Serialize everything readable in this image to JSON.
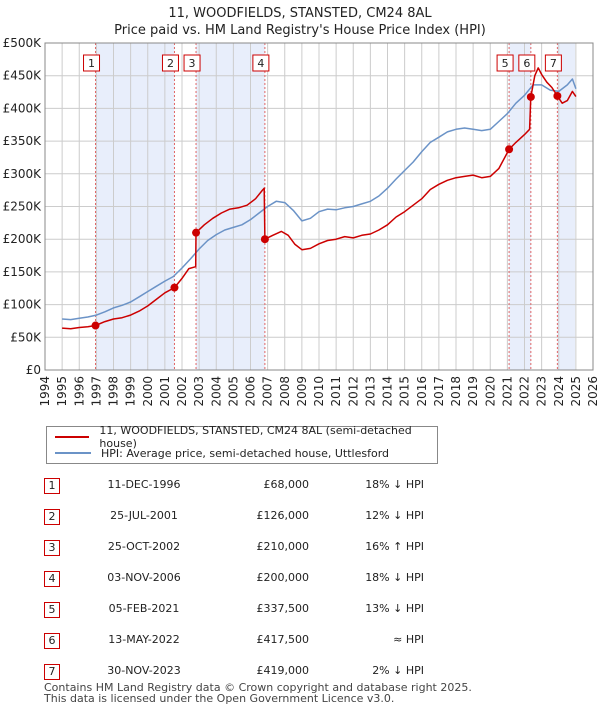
{
  "chart_data": {
    "type": "line",
    "title": "11, WOODFIELDS, STANSTED, CM24 8AL",
    "subtitle": "Price paid vs. HM Land Registry's House Price Index (HPI)",
    "xlabel": "",
    "ylabel": "",
    "xlim": [
      1994,
      2026
    ],
    "ylim": [
      0,
      500000
    ],
    "x_ticks": [
      "1994",
      "1995",
      "1996",
      "1997",
      "1998",
      "1999",
      "2000",
      "2001",
      "2002",
      "2003",
      "2004",
      "2005",
      "2006",
      "2007",
      "2008",
      "2009",
      "2010",
      "2011",
      "2012",
      "2013",
      "2014",
      "2015",
      "2016",
      "2017",
      "2018",
      "2019",
      "2020",
      "2021",
      "2022",
      "2023",
      "2024",
      "2025",
      "2026"
    ],
    "y_ticks": [
      {
        "value": 0,
        "label": "£0"
      },
      {
        "value": 50000,
        "label": "£50K"
      },
      {
        "value": 100000,
        "label": "£100K"
      },
      {
        "value": 150000,
        "label": "£150K"
      },
      {
        "value": 200000,
        "label": "£200K"
      },
      {
        "value": 250000,
        "label": "£250K"
      },
      {
        "value": 300000,
        "label": "£300K"
      },
      {
        "value": 350000,
        "label": "£350K"
      },
      {
        "value": 400000,
        "label": "£400K"
      },
      {
        "value": 450000,
        "label": "£450K"
      },
      {
        "value": 500000,
        "label": "£500K"
      }
    ],
    "grid": true,
    "legend_position": "below",
    "shaded_periods": [
      [
        1996.95,
        2001.56
      ],
      [
        2002.82,
        2006.84
      ],
      [
        2021.1,
        2022.37
      ],
      [
        2023.92,
        2024.95
      ]
    ],
    "series": [
      {
        "name": "11, WOODFIELDS, STANSTED, CM24 8AL (semi-detached house)",
        "color": "#cc0000",
        "points": [
          [
            1995.0,
            64000
          ],
          [
            1995.5,
            63000
          ],
          [
            1996.0,
            65000
          ],
          [
            1996.5,
            66000
          ],
          [
            1996.95,
            68000
          ],
          [
            1997.5,
            74000
          ],
          [
            1998.0,
            78000
          ],
          [
            1998.5,
            80000
          ],
          [
            1999.0,
            84000
          ],
          [
            1999.5,
            90000
          ],
          [
            2000.0,
            98000
          ],
          [
            2000.5,
            108000
          ],
          [
            2001.0,
            118000
          ],
          [
            2001.56,
            126000
          ],
          [
            2002.0,
            140000
          ],
          [
            2002.4,
            155000
          ],
          [
            2002.8,
            158000
          ],
          [
            2002.82,
            210000
          ],
          [
            2003.3,
            222000
          ],
          [
            2003.8,
            232000
          ],
          [
            2004.3,
            240000
          ],
          [
            2004.8,
            246000
          ],
          [
            2005.3,
            248000
          ],
          [
            2005.8,
            252000
          ],
          [
            2006.3,
            262000
          ],
          [
            2006.7,
            275000
          ],
          [
            2006.8,
            278000
          ],
          [
            2006.84,
            200000
          ],
          [
            2007.3,
            206000
          ],
          [
            2007.8,
            212000
          ],
          [
            2008.2,
            206000
          ],
          [
            2008.6,
            192000
          ],
          [
            2009.0,
            184000
          ],
          [
            2009.5,
            186000
          ],
          [
            2010.0,
            193000
          ],
          [
            2010.5,
            198000
          ],
          [
            2011.0,
            200000
          ],
          [
            2011.5,
            204000
          ],
          [
            2012.0,
            202000
          ],
          [
            2012.5,
            206000
          ],
          [
            2013.0,
            208000
          ],
          [
            2013.5,
            214000
          ],
          [
            2014.0,
            222000
          ],
          [
            2014.5,
            234000
          ],
          [
            2015.0,
            242000
          ],
          [
            2015.5,
            252000
          ],
          [
            2016.0,
            262000
          ],
          [
            2016.5,
            276000
          ],
          [
            2017.0,
            284000
          ],
          [
            2017.5,
            290000
          ],
          [
            2018.0,
            294000
          ],
          [
            2018.5,
            296000
          ],
          [
            2019.0,
            298000
          ],
          [
            2019.5,
            294000
          ],
          [
            2020.0,
            296000
          ],
          [
            2020.5,
            308000
          ],
          [
            2021.1,
            337500
          ],
          [
            2021.5,
            348000
          ],
          [
            2022.0,
            360000
          ],
          [
            2022.3,
            368000
          ],
          [
            2022.37,
            417500
          ],
          [
            2022.6,
            450000
          ],
          [
            2022.8,
            462000
          ],
          [
            2023.0,
            452000
          ],
          [
            2023.3,
            440000
          ],
          [
            2023.6,
            432000
          ],
          [
            2023.92,
            419000
          ],
          [
            2024.2,
            408000
          ],
          [
            2024.5,
            412000
          ],
          [
            2024.8,
            426000
          ],
          [
            2025.0,
            418000
          ]
        ]
      },
      {
        "name": "HPI: Average price, semi-detached house, Uttlesford",
        "color": "#6b93c7",
        "points": [
          [
            1995.0,
            78000
          ],
          [
            1995.5,
            77000
          ],
          [
            1996.0,
            79000
          ],
          [
            1996.5,
            81000
          ],
          [
            1997.0,
            84000
          ],
          [
            1997.5,
            89000
          ],
          [
            1998.0,
            95000
          ],
          [
            1998.5,
            99000
          ],
          [
            1999.0,
            104000
          ],
          [
            1999.5,
            112000
          ],
          [
            2000.0,
            120000
          ],
          [
            2000.5,
            128000
          ],
          [
            2001.0,
            136000
          ],
          [
            2001.5,
            143000
          ],
          [
            2002.0,
            156000
          ],
          [
            2002.5,
            170000
          ],
          [
            2003.0,
            185000
          ],
          [
            2003.5,
            198000
          ],
          [
            2004.0,
            207000
          ],
          [
            2004.5,
            214000
          ],
          [
            2005.0,
            218000
          ],
          [
            2005.5,
            222000
          ],
          [
            2006.0,
            230000
          ],
          [
            2006.5,
            240000
          ],
          [
            2007.0,
            250000
          ],
          [
            2007.5,
            258000
          ],
          [
            2008.0,
            256000
          ],
          [
            2008.5,
            244000
          ],
          [
            2009.0,
            228000
          ],
          [
            2009.5,
            232000
          ],
          [
            2010.0,
            242000
          ],
          [
            2010.5,
            246000
          ],
          [
            2011.0,
            245000
          ],
          [
            2011.5,
            248000
          ],
          [
            2012.0,
            250000
          ],
          [
            2012.5,
            254000
          ],
          [
            2013.0,
            258000
          ],
          [
            2013.5,
            266000
          ],
          [
            2014.0,
            278000
          ],
          [
            2014.5,
            292000
          ],
          [
            2015.0,
            305000
          ],
          [
            2015.5,
            318000
          ],
          [
            2016.0,
            334000
          ],
          [
            2016.5,
            348000
          ],
          [
            2017.0,
            356000
          ],
          [
            2017.5,
            364000
          ],
          [
            2018.0,
            368000
          ],
          [
            2018.5,
            370000
          ],
          [
            2019.0,
            368000
          ],
          [
            2019.5,
            366000
          ],
          [
            2020.0,
            368000
          ],
          [
            2020.5,
            380000
          ],
          [
            2021.0,
            392000
          ],
          [
            2021.5,
            408000
          ],
          [
            2022.0,
            420000
          ],
          [
            2022.5,
            436000
          ],
          [
            2023.0,
            436000
          ],
          [
            2023.5,
            428000
          ],
          [
            2024.0,
            426000
          ],
          [
            2024.5,
            436000
          ],
          [
            2024.8,
            445000
          ],
          [
            2025.0,
            430000
          ]
        ]
      }
    ],
    "sales": [
      {
        "num": "1",
        "x": 1996.95,
        "price": 68000
      },
      {
        "num": "2",
        "x": 2001.56,
        "price": 126000
      },
      {
        "num": "3",
        "x": 2002.82,
        "price": 210000
      },
      {
        "num": "4",
        "x": 2006.84,
        "price": 200000
      },
      {
        "num": "5",
        "x": 2021.1,
        "price": 337500
      },
      {
        "num": "6",
        "x": 2022.37,
        "price": 417500
      },
      {
        "num": "7",
        "x": 2023.92,
        "price": 419000
      }
    ]
  },
  "colors": {
    "red": "#cc0000",
    "blue": "#6b93c7",
    "shade": "#e8eefb",
    "marker_line": "#e06666",
    "grid": "#cccccc"
  },
  "legend": {
    "property_label": "11, WOODFIELDS, STANSTED, CM24 8AL (semi-detached house)",
    "hpi_label": "HPI: Average price, semi-detached house, Uttlesford"
  },
  "transactions": [
    {
      "num": "1",
      "date": "11-DEC-1996",
      "price": "£68,000",
      "hpi": "18% ↓ HPI"
    },
    {
      "num": "2",
      "date": "25-JUL-2001",
      "price": "£126,000",
      "hpi": "12% ↓ HPI"
    },
    {
      "num": "3",
      "date": "25-OCT-2002",
      "price": "£210,000",
      "hpi": "16% ↑ HPI"
    },
    {
      "num": "4",
      "date": "03-NOV-2006",
      "price": "£200,000",
      "hpi": "18% ↓ HPI"
    },
    {
      "num": "5",
      "date": "05-FEB-2021",
      "price": "£337,500",
      "hpi": "13% ↓ HPI"
    },
    {
      "num": "6",
      "date": "13-MAY-2022",
      "price": "£417,500",
      "hpi": "≈ HPI"
    },
    {
      "num": "7",
      "date": "30-NOV-2023",
      "price": "£419,000",
      "hpi": "2% ↓ HPI"
    }
  ],
  "footer": {
    "line1": "Contains HM Land Registry data © Crown copyright and database right 2025.",
    "line2": "This data is licensed under the Open Government Licence v3.0."
  }
}
